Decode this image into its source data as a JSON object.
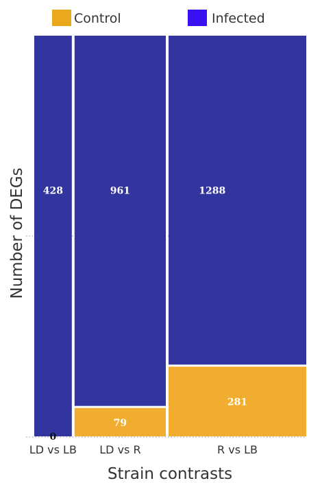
{
  "chart_data": {
    "type": "bar",
    "subtype": "mosaic-stacked",
    "xlabel": "Strain contrasts",
    "ylabel": "Number of DEGs",
    "legend_placement": "top",
    "categories": [
      "LD vs LB",
      "LD vs R",
      "R vs LB"
    ],
    "series": [
      {
        "name": "Control",
        "color": "#f0ad30",
        "values": [
          0,
          79,
          281
        ]
      },
      {
        "name": "Infected",
        "color": "#32359e",
        "values": [
          428,
          961,
          1288
        ]
      }
    ],
    "data_labels": {
      "Control": [
        "0",
        "79",
        "281"
      ],
      "Infected": [
        "428",
        "961",
        "1288"
      ]
    },
    "gridline_style": "dotted",
    "legend_colors": {
      "Control": "#eaa91c",
      "Infected": "#3a10f0"
    }
  }
}
